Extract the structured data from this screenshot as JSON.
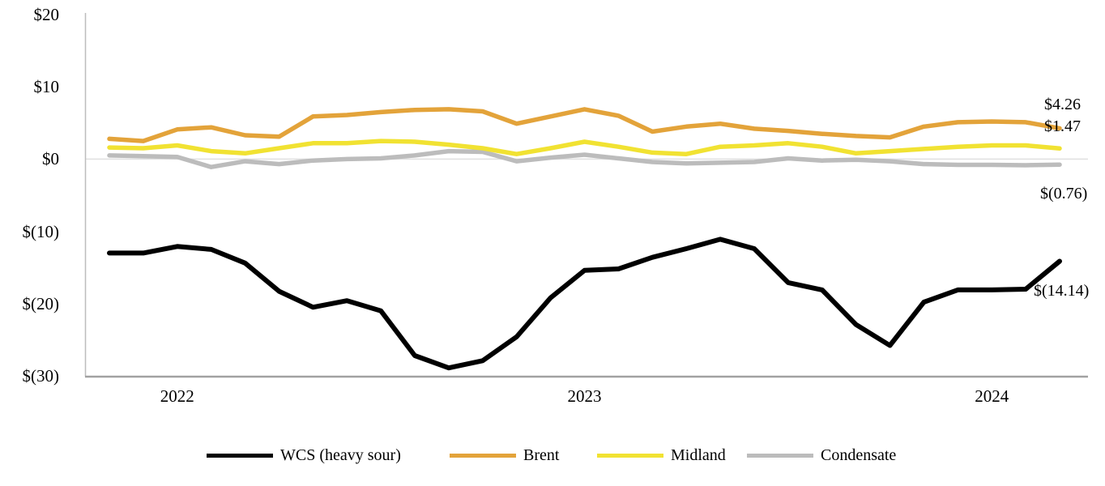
{
  "chart_data": {
    "type": "line",
    "title": "",
    "xlabel": "",
    "ylabel": "",
    "ylim": [
      -30,
      20
    ],
    "grid": "zero-line-only",
    "legend_position": "bottom",
    "x": [
      "Nov-21",
      "Dec-21",
      "Jan-22",
      "Feb-22",
      "Mar-22",
      "Apr-22",
      "May-22",
      "Jun-22",
      "Jul-22",
      "Aug-22",
      "Sep-22",
      "Oct-22",
      "Nov-22",
      "Dec-22",
      "Jan-23",
      "Feb-23",
      "Mar-23",
      "Apr-23",
      "May-23",
      "Jun-23",
      "Jul-23",
      "Aug-23",
      "Sep-23",
      "Oct-23",
      "Nov-23",
      "Dec-23",
      "Jan-24",
      "Feb-24",
      "Mar-24"
    ],
    "y_ticks": [
      "$20",
      "$10",
      "$0",
      "$(10)",
      "$(20)",
      "$(30)"
    ],
    "y_tick_values": [
      20,
      10,
      0,
      -10,
      -20,
      -30
    ],
    "x_axis_labels": [
      {
        "label": "2022",
        "month_index": 2
      },
      {
        "label": "2023",
        "month_index": 14
      },
      {
        "label": "2024",
        "month_index": 26
      }
    ],
    "series": [
      {
        "name": "WCS (heavy sour)",
        "color": "#000000",
        "end_label": "$(14.14)",
        "values": [
          -13.0,
          -13.0,
          -12.1,
          -12.5,
          -14.4,
          -18.3,
          -20.5,
          -19.6,
          -21.0,
          -27.2,
          -28.9,
          -27.9,
          -24.6,
          -19.2,
          -15.4,
          -15.2,
          -13.6,
          -12.4,
          -11.1,
          -12.4,
          -17.1,
          -18.1,
          -22.9,
          -25.8,
          -19.8,
          -18.1,
          -18.1,
          -18.0,
          -14.14
        ]
      },
      {
        "name": "Brent",
        "color": "#E3A33A",
        "end_label": "$4.26",
        "values": [
          2.8,
          2.5,
          4.1,
          4.4,
          3.3,
          3.1,
          5.9,
          6.1,
          6.5,
          6.8,
          6.9,
          6.6,
          4.9,
          5.9,
          6.9,
          6.0,
          3.8,
          4.5,
          4.9,
          4.2,
          3.9,
          3.5,
          3.2,
          3.0,
          4.5,
          5.1,
          5.2,
          5.1,
          4.26
        ]
      },
      {
        "name": "Midland",
        "color": "#F1E232",
        "end_label": "$1.47",
        "values": [
          1.6,
          1.5,
          1.9,
          1.1,
          0.8,
          1.5,
          2.2,
          2.2,
          2.5,
          2.4,
          2.0,
          1.5,
          0.7,
          1.5,
          2.4,
          1.7,
          0.9,
          0.7,
          1.7,
          1.9,
          2.2,
          1.7,
          0.8,
          1.1,
          1.4,
          1.7,
          1.9,
          1.9,
          1.47
        ]
      },
      {
        "name": "Condensate",
        "color": "#BCBCBC",
        "end_label": "$(0.76)",
        "values": [
          0.5,
          0.4,
          0.3,
          -1.1,
          -0.3,
          -0.7,
          -0.2,
          0.0,
          0.1,
          0.5,
          1.1,
          1.0,
          -0.3,
          0.2,
          0.6,
          0.1,
          -0.4,
          -0.6,
          -0.5,
          -0.4,
          0.1,
          -0.2,
          -0.1,
          -0.3,
          -0.7,
          -0.8,
          -0.8,
          -0.85,
          -0.76
        ]
      }
    ]
  }
}
